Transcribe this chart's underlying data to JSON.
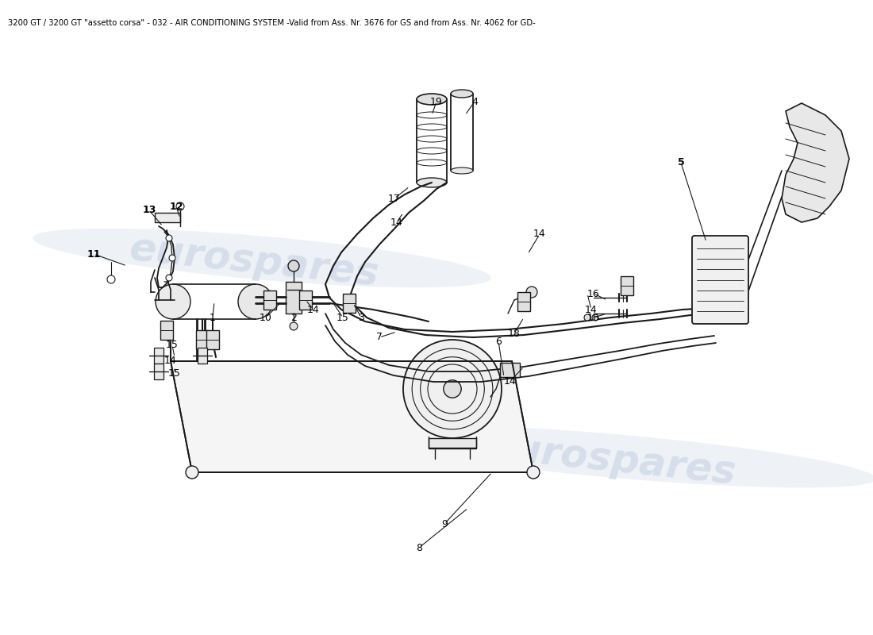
{
  "title": "3200 GT / 3200 GT \"assetto corsa\" - 032 - AIR CONDITIONING SYSTEM -Valid from Ass. Nr. 3676 for GS and from Ass. Nr. 4062 for GD-",
  "title_fontsize": 7.2,
  "title_color": "#000000",
  "bg_color": "#ffffff",
  "watermark_text": "eurospares",
  "watermark_color": "#c8d4e4",
  "watermark_fontsize": 36,
  "fig_width": 11.0,
  "fig_height": 8.0,
  "dpi": 100,
  "label_fontsize": 9,
  "label_color": "#000000",
  "bold_labels": [
    "5",
    "11",
    "12",
    "13"
  ],
  "line_color": "#1a1a1a",
  "bg_color2": "#ffffff"
}
